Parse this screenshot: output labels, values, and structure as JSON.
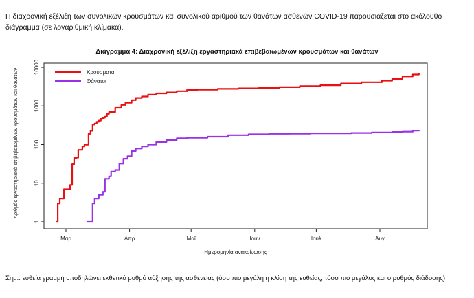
{
  "intro_text": "Η διαχρονική εξέλιξη των συνολικών κρουσμάτων και συνολικού αριθμού των θανάτων ασθενών COVID-19 παρουσιάζεται στο ακόλουθο διάγραμμα (σε λογαριθμική κλίμακα).",
  "note_text": "Σημ.: ευθεία γραμμή υποδηλώνει εκθετικό ρυθμό αύξησης της ασθένειας (όσο πιο μεγάλη η κλίση της ευθείας, τόσο πιο μεγάλος και ο ρυθμός διάδοσης)",
  "chart_data": {
    "type": "line",
    "title": "Διάγραμμα 4: Διαχρονική εξέλιξη εργαστηριακά επιβεβαιωμένων κρουσμάτων και θανάτων",
    "xlabel": "Ημερομηνία ανακοίνωσης",
    "ylabel": "Αριθμός εργαστηριακά επιβεβαιωμένων κρουσμάτων και θανάτων",
    "y_scale": "log",
    "ylim": [
      1,
      10000
    ],
    "yticks": [
      "1",
      "10",
      "100",
      "1000",
      "10000"
    ],
    "x_unit": "2020 day of month (Mar 1 = 1)",
    "xticks": [
      {
        "label": "Μαρ",
        "day": 1
      },
      {
        "label": "Απρ",
        "day": 32
      },
      {
        "label": "Μαΐ",
        "day": 62
      },
      {
        "label": "Ιουν",
        "day": 93
      },
      {
        "label": "Ιουλ",
        "day": 123
      },
      {
        "label": "Αυγ",
        "day": 154
      }
    ],
    "xlim": [
      -4,
      180
    ],
    "grid": false,
    "legend_position": "top-left",
    "series": [
      {
        "name": "Κρούσματα",
        "color": "#e81010",
        "points": [
          [
            -4,
            1
          ],
          [
            -3,
            3
          ],
          [
            -2,
            4
          ],
          [
            -1,
            4
          ],
          [
            0,
            7
          ],
          [
            1,
            7
          ],
          [
            2,
            7
          ],
          [
            3,
            9
          ],
          [
            4,
            31
          ],
          [
            5,
            45
          ],
          [
            6,
            46
          ],
          [
            7,
            73
          ],
          [
            8,
            73
          ],
          [
            9,
            89
          ],
          [
            10,
            99
          ],
          [
            11,
            99
          ],
          [
            12,
            190
          ],
          [
            13,
            228
          ],
          [
            14,
            331
          ],
          [
            15,
            352
          ],
          [
            16,
            387
          ],
          [
            17,
            418
          ],
          [
            18,
            464
          ],
          [
            19,
            495
          ],
          [
            20,
            530
          ],
          [
            21,
            624
          ],
          [
            22,
            695
          ],
          [
            25,
            892
          ],
          [
            28,
            1061
          ],
          [
            30,
            1212
          ],
          [
            33,
            1415
          ],
          [
            35,
            1613
          ],
          [
            38,
            1755
          ],
          [
            41,
            1955
          ],
          [
            45,
            2114
          ],
          [
            50,
            2235
          ],
          [
            55,
            2411
          ],
          [
            60,
            2591
          ],
          [
            65,
            2632
          ],
          [
            75,
            2760
          ],
          [
            85,
            2855
          ],
          [
            95,
            2915
          ],
          [
            105,
            3068
          ],
          [
            115,
            3262
          ],
          [
            125,
            3432
          ],
          [
            135,
            3800
          ],
          [
            145,
            4100
          ],
          [
            155,
            4500
          ],
          [
            160,
            5000
          ],
          [
            165,
            5800
          ],
          [
            170,
            6500
          ],
          [
            173,
            7200
          ]
        ]
      },
      {
        "name": "Θάνατοι",
        "color": "#9932e6",
        "points": [
          [
            11,
            1
          ],
          [
            12,
            1
          ],
          [
            13,
            1
          ],
          [
            14,
            3
          ],
          [
            15,
            4
          ],
          [
            16,
            4
          ],
          [
            17,
            5
          ],
          [
            18,
            5
          ],
          [
            19,
            6
          ],
          [
            20,
            13
          ],
          [
            22,
            15
          ],
          [
            23,
            20
          ],
          [
            25,
            22
          ],
          [
            27,
            32
          ],
          [
            29,
            43
          ],
          [
            31,
            50
          ],
          [
            33,
            68
          ],
          [
            35,
            79
          ],
          [
            38,
            90
          ],
          [
            41,
            100
          ],
          [
            45,
            116
          ],
          [
            50,
            130
          ],
          [
            55,
            146
          ],
          [
            60,
            150
          ],
          [
            70,
            160
          ],
          [
            80,
            175
          ],
          [
            90,
            185
          ],
          [
            100,
            190
          ],
          [
            110,
            192
          ],
          [
            120,
            195
          ],
          [
            130,
            196
          ],
          [
            140,
            200
          ],
          [
            150,
            206
          ],
          [
            160,
            212
          ],
          [
            165,
            216
          ],
          [
            170,
            230
          ],
          [
            173,
            240
          ]
        ]
      }
    ]
  }
}
